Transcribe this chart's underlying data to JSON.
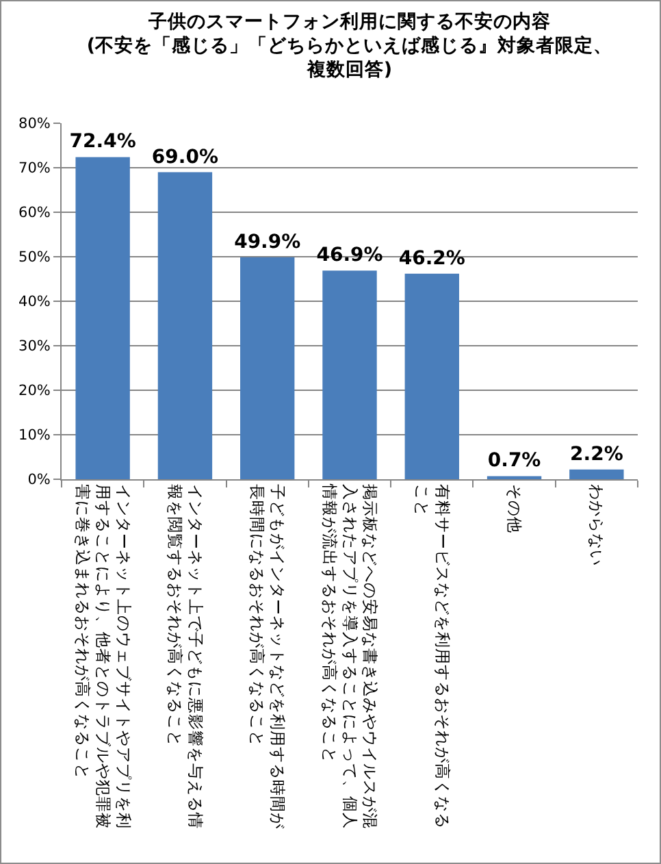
{
  "chart_data": {
    "type": "bar",
    "title": "子供のスマートフォン利用に関する不安の内容",
    "subtitle": "(不安を「感じる」「どちらかといえば感じる』対象者限定、複数回答)",
    "categories": [
      "インターネット上のウェブサイトやアプリを利用することにより、他者とのトラブルや犯罪被害に巻き込まれるおそれが高くなること",
      "インターネット上で子どもに悪影響を与える情報を閲覧するおそれが高くなること",
      "子どもがインターネットなどを利用する時間が長時間になるおそれが高くなること",
      "掲示板などへの安易な書き込みやウイルスが混入されたアプリを導入することによって、個人情報が流出するおそれが高くなること",
      "有料サービスなどを利用するおそれが高くなること",
      "その他",
      "わからない"
    ],
    "values": [
      72.4,
      69.0,
      49.9,
      46.9,
      46.2,
      0.7,
      2.2
    ],
    "value_labels": [
      "72.4%",
      "69.0%",
      "49.9%",
      "46.9%",
      "46.2%",
      "0.7%",
      "2.2%"
    ],
    "color": "#4a7ebb",
    "ylim": [
      0,
      80
    ],
    "yticks": [
      {
        "value": 0,
        "label": "0%"
      },
      {
        "value": 10,
        "label": "10%"
      },
      {
        "value": 20,
        "label": "20%"
      },
      {
        "value": 30,
        "label": "30%"
      },
      {
        "value": 40,
        "label": "40%"
      },
      {
        "value": 50,
        "label": "50%"
      },
      {
        "value": 60,
        "label": "60%"
      },
      {
        "value": 70,
        "label": "70%"
      },
      {
        "value": 80,
        "label": "80%"
      }
    ],
    "grid": "y"
  }
}
